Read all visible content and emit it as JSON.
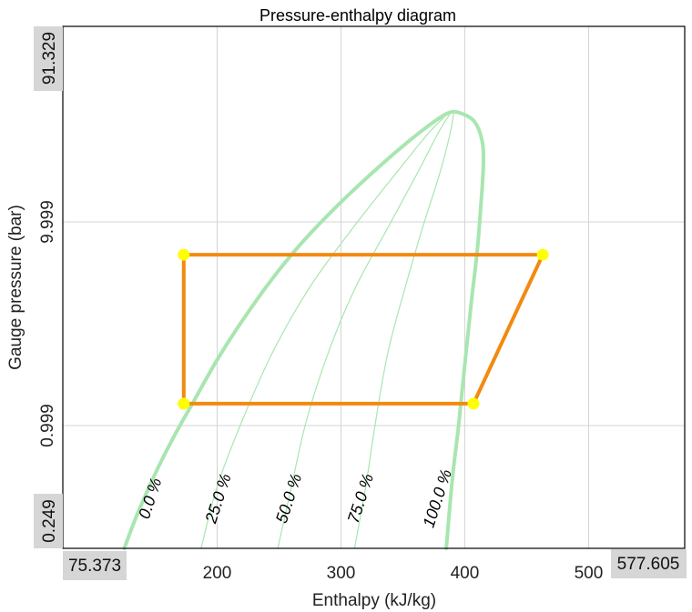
{
  "chart_data": {
    "type": "line",
    "title": "Pressure-enthalpy diagram",
    "xlabel": "Enthalpy (kJ/kg)",
    "ylabel": "Gauge pressure (bar)",
    "x_scale": "linear",
    "y_scale": "log",
    "xlim": [
      75.373,
      577.605
    ],
    "ylim": [
      0.249,
      91.329
    ],
    "xlim_labels": [
      "75.373",
      "577.605"
    ],
    "ylim_labels": [
      "0.249",
      "91.329"
    ],
    "x_ticks": [
      {
        "value": 200,
        "label": "200"
      },
      {
        "value": 300,
        "label": "300"
      },
      {
        "value": 400,
        "label": "400"
      },
      {
        "value": 500,
        "label": "500"
      }
    ],
    "y_ticks": [
      {
        "value": 0.999,
        "label": "0.999"
      },
      {
        "value": 9.999,
        "label": "9.999"
      }
    ],
    "grid": true,
    "saturation_dome": {
      "liquid_line": [
        [
          125,
          0.249
        ],
        [
          135,
          0.36
        ],
        [
          150,
          0.58
        ],
        [
          165,
          0.88
        ],
        [
          180,
          1.28
        ],
        [
          200,
          2.1
        ],
        [
          220,
          3.25
        ],
        [
          245,
          5.3
        ],
        [
          270,
          8.1
        ],
        [
          300,
          12.5
        ],
        [
          330,
          18.5
        ],
        [
          355,
          25.0
        ],
        [
          375,
          31.0
        ],
        [
          388,
          34.5
        ]
      ],
      "vapor_line": [
        [
          388,
          34.5
        ],
        [
          398,
          34.0
        ],
        [
          408,
          31.0
        ],
        [
          414,
          25.0
        ],
        [
          415,
          19.0
        ],
        [
          413,
          12.0
        ],
        [
          410,
          7.2
        ],
        [
          405,
          3.9
        ],
        [
          400,
          2.0
        ],
        [
          395,
          1.0
        ],
        [
          390,
          0.55
        ],
        [
          385,
          0.249
        ]
      ],
      "color": "#a8e6b0"
    },
    "quality_lines": [
      {
        "label": "0.0 %",
        "label_at": [
          150,
          0.43
        ]
      },
      {
        "label": "25.0 %",
        "label_at": [
          205,
          0.43
        ],
        "points": [
          [
            187,
            0.249
          ],
          [
            200,
            0.5
          ],
          [
            220,
            1.05
          ],
          [
            245,
            2.3
          ],
          [
            275,
            4.8
          ],
          [
            310,
            9.4
          ],
          [
            345,
            17.5
          ],
          [
            370,
            27.0
          ],
          [
            386,
            34.0
          ]
        ]
      },
      {
        "label": "50.0 %",
        "label_at": [
          262,
          0.43
        ],
        "points": [
          [
            249,
            0.249
          ],
          [
            260,
            0.5
          ],
          [
            272,
            1.05
          ],
          [
            290,
            2.3
          ],
          [
            312,
            4.8
          ],
          [
            338,
            9.4
          ],
          [
            362,
            17.5
          ],
          [
            378,
            27.0
          ],
          [
            388,
            34.0
          ]
        ]
      },
      {
        "label": "75.0 %",
        "label_at": [
          320,
          0.43
        ],
        "points": [
          [
            311,
            0.249
          ],
          [
            320,
            0.5
          ],
          [
            328,
            1.05
          ],
          [
            338,
            2.3
          ],
          [
            352,
            4.8
          ],
          [
            366,
            9.4
          ],
          [
            380,
            17.5
          ],
          [
            388,
            27.0
          ],
          [
            391,
            34.0
          ]
        ]
      },
      {
        "label": "100.0 %",
        "label_at": [
          382,
          0.43
        ]
      }
    ],
    "cycle": {
      "points": [
        [
          173,
          6.9
        ],
        [
          463,
          6.9
        ],
        [
          407,
          1.28
        ],
        [
          173,
          1.28
        ]
      ],
      "closed": true,
      "color": "#f28a10",
      "state_marker_color": "#ffff00"
    }
  }
}
